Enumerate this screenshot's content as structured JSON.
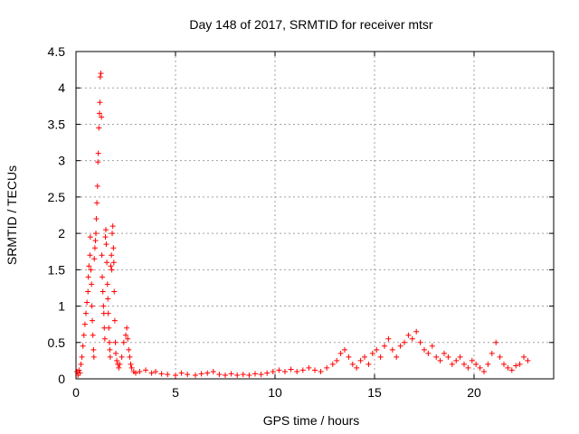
{
  "chart_data": {
    "type": "scatter",
    "title": "Day 148 of 2017, SRMTID for receiver mtsr",
    "xlabel": "GPS time / hours",
    "ylabel": "SRMTID / TECUs",
    "xlim": [
      0,
      24
    ],
    "ylim": [
      0,
      4.5
    ],
    "x_ticks": [
      "0",
      "5",
      "10",
      "15",
      "20"
    ],
    "y_ticks": [
      "0",
      "0.5",
      "1",
      "1.5",
      "2",
      "2.5",
      "3",
      "3.5",
      "4",
      "4.5"
    ],
    "grid": true,
    "marker": "plus",
    "series_color": "#ff0000",
    "series": [
      {
        "x": [
          0.05,
          0.1,
          0.15,
          0.2,
          0.25,
          0.3,
          0.35,
          0.4,
          0.45,
          0.5,
          0.55,
          0.6,
          0.62,
          0.65,
          0.7,
          0.72,
          0.75,
          0.78,
          0.8,
          0.82,
          0.85,
          0.88,
          0.9,
          0.92,
          0.95,
          0.98,
          1.0,
          1.02,
          1.05,
          1.08,
          1.1,
          1.12,
          1.15,
          1.18,
          1.2,
          1.22,
          1.25,
          1.28,
          1.3,
          1.32,
          1.35,
          1.38,
          1.4,
          1.42,
          1.45,
          1.48,
          1.5,
          1.52,
          1.55,
          1.58,
          1.6,
          1.62,
          1.65,
          1.68,
          1.7,
          1.72,
          1.75,
          1.78,
          1.8,
          1.82,
          1.85,
          1.88,
          1.9,
          1.92,
          1.95,
          1.98,
          2.0,
          2.05,
          2.1,
          2.15,
          2.2,
          2.3,
          2.4,
          2.5,
          2.55,
          2.6,
          2.65,
          2.7,
          2.75,
          2.8,
          2.9,
          3.0,
          3.2,
          3.5,
          3.8,
          4.0,
          4.3,
          4.6,
          5.0,
          5.3,
          5.6,
          6.0,
          6.3,
          6.6,
          6.9,
          7.2,
          7.5,
          7.8,
          8.1,
          8.4,
          8.7,
          9.0,
          9.3,
          9.6,
          9.9,
          10.2,
          10.5,
          10.8,
          11.1,
          11.4,
          11.7,
          12.0,
          12.3,
          12.6,
          12.9,
          13.1,
          13.3,
          13.5,
          13.7,
          13.9,
          14.1,
          14.3,
          14.5,
          14.7,
          14.9,
          15.1,
          15.3,
          15.5,
          15.7,
          15.9,
          16.1,
          16.3,
          16.5,
          16.7,
          16.9,
          17.1,
          17.3,
          17.5,
          17.7,
          17.9,
          18.1,
          18.3,
          18.5,
          18.7,
          18.9,
          19.1,
          19.3,
          19.5,
          19.7,
          19.9,
          20.1,
          20.3,
          20.5,
          20.7,
          20.9,
          21.1,
          21.3,
          21.5,
          21.7,
          21.9,
          22.1,
          22.3,
          22.5,
          22.7
        ],
        "y": [
          0.1,
          0.05,
          0.12,
          0.08,
          0.2,
          0.3,
          0.45,
          0.6,
          0.75,
          0.9,
          1.05,
          1.2,
          1.4,
          1.55,
          1.7,
          1.95,
          1.5,
          1.3,
          1.0,
          0.8,
          0.6,
          0.4,
          0.3,
          1.65,
          1.8,
          1.9,
          2.0,
          2.2,
          2.42,
          2.65,
          2.98,
          3.1,
          3.45,
          3.65,
          3.8,
          4.15,
          4.2,
          3.6,
          1.7,
          1.4,
          1.2,
          1.0,
          0.9,
          0.7,
          0.55,
          1.95,
          2.05,
          1.85,
          1.6,
          1.3,
          1.1,
          0.9,
          0.7,
          0.5,
          0.4,
          0.3,
          1.55,
          1.7,
          1.5,
          2.0,
          2.1,
          1.8,
          1.6,
          1.2,
          0.8,
          0.5,
          0.35,
          0.25,
          0.2,
          0.15,
          0.2,
          0.3,
          0.5,
          0.6,
          0.7,
          0.55,
          0.4,
          0.3,
          0.2,
          0.15,
          0.1,
          0.08,
          0.1,
          0.12,
          0.08,
          0.1,
          0.07,
          0.06,
          0.05,
          0.08,
          0.06,
          0.05,
          0.07,
          0.08,
          0.1,
          0.06,
          0.05,
          0.07,
          0.05,
          0.06,
          0.05,
          0.07,
          0.06,
          0.08,
          0.1,
          0.12,
          0.1,
          0.13,
          0.1,
          0.12,
          0.15,
          0.12,
          0.1,
          0.15,
          0.2,
          0.25,
          0.35,
          0.4,
          0.3,
          0.2,
          0.15,
          0.25,
          0.3,
          0.2,
          0.35,
          0.4,
          0.3,
          0.45,
          0.55,
          0.4,
          0.3,
          0.45,
          0.5,
          0.6,
          0.55,
          0.65,
          0.5,
          0.4,
          0.35,
          0.45,
          0.3,
          0.25,
          0.35,
          0.3,
          0.2,
          0.25,
          0.3,
          0.2,
          0.15,
          0.25,
          0.2,
          0.15,
          0.1,
          0.2,
          0.35,
          0.5,
          0.3,
          0.2,
          0.15,
          0.12,
          0.18,
          0.2,
          0.3,
          0.25
        ]
      }
    ]
  }
}
